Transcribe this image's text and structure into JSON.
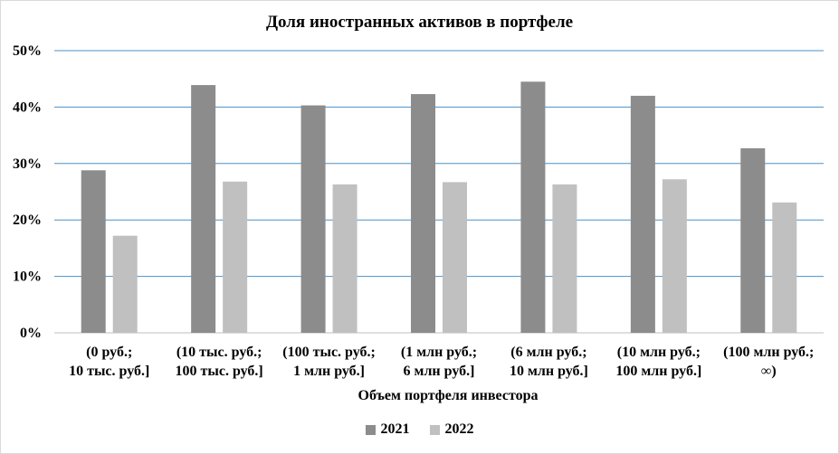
{
  "chart_data": {
    "type": "bar",
    "title": "Доля иностранных активов в портфеле",
    "xlabel": "Объем портфеля инвестора",
    "ylabel": "",
    "ylim": [
      0,
      50
    ],
    "yticks": [
      "0%",
      "10%",
      "20%",
      "30%",
      "40%",
      "50%"
    ],
    "categories": [
      [
        "(0 руб.;",
        "10 тыс. руб.]"
      ],
      [
        "(10 тыс. руб.;",
        "100 тыс. руб.]"
      ],
      [
        "(100 тыс. руб.;",
        "1 млн руб.]"
      ],
      [
        "(1 млн руб.;",
        "6 млн руб.]"
      ],
      [
        "(6 млн руб.;",
        "10 млн руб.]"
      ],
      [
        "(10 млн руб.;",
        "100 млн руб.]"
      ],
      [
        "(100 млн руб.;",
        "∞)"
      ]
    ],
    "series": [
      {
        "name": "2021",
        "color": "#8c8c8c",
        "values": [
          28.8,
          43.9,
          40.3,
          42.3,
          44.5,
          42.0,
          32.7
        ]
      },
      {
        "name": "2022",
        "color": "#c0c0c0",
        "values": [
          17.2,
          26.8,
          26.3,
          26.7,
          26.3,
          27.2,
          23.1
        ]
      }
    ],
    "grid": true,
    "gridline_color": "#4a90c8",
    "legend_position": "bottom"
  }
}
